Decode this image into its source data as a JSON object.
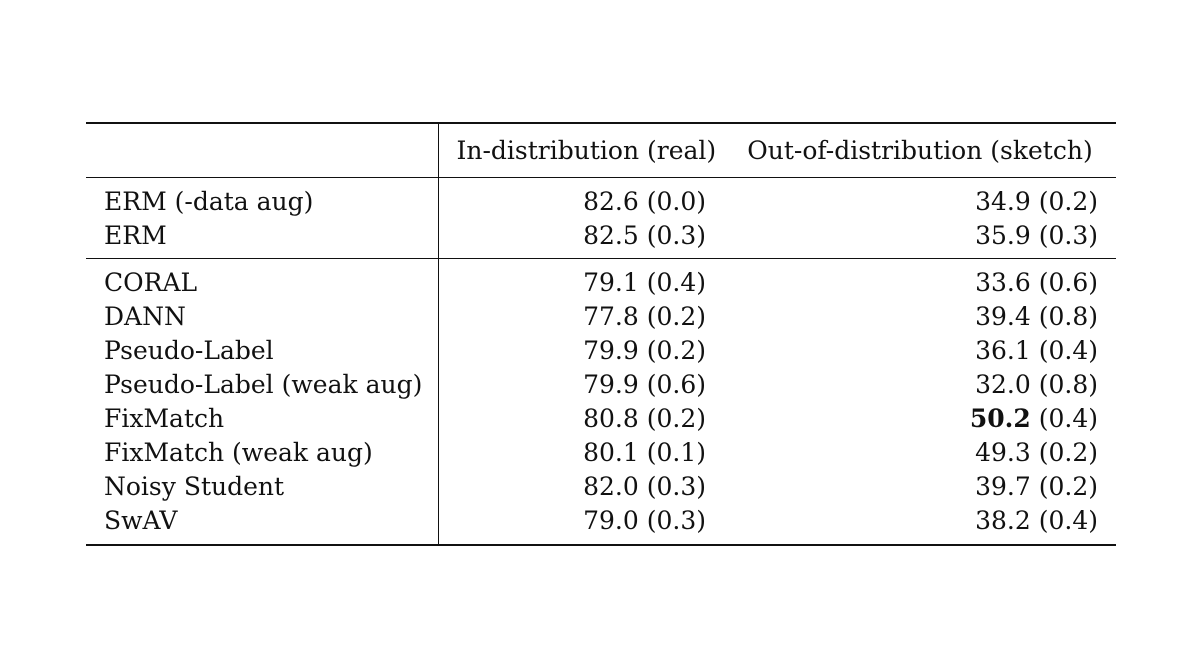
{
  "table": {
    "headers": {
      "method": "",
      "in_distribution": "In-distribution (real)",
      "out_of_distribution": "Out-of-distribution (sketch)"
    },
    "groups": [
      {
        "rows": [
          {
            "method": "ERM (-data aug)",
            "id_mean": "82.6",
            "id_std": "(0.0)",
            "ood_mean": "34.9",
            "ood_std": "(0.2)"
          },
          {
            "method": "ERM",
            "id_mean": "82.5",
            "id_std": "(0.3)",
            "ood_mean": "35.9",
            "ood_std": "(0.3)"
          }
        ]
      },
      {
        "rows": [
          {
            "method": "CORAL",
            "id_mean": "79.1",
            "id_std": "(0.4)",
            "ood_mean": "33.6",
            "ood_std": "(0.6)"
          },
          {
            "method": "DANN",
            "id_mean": "77.8",
            "id_std": "(0.2)",
            "ood_mean": "39.4",
            "ood_std": "(0.8)"
          },
          {
            "method": "Pseudo-Label",
            "id_mean": "79.9",
            "id_std": "(0.2)",
            "ood_mean": "36.1",
            "ood_std": "(0.4)"
          },
          {
            "method": "Pseudo-Label (weak aug)",
            "id_mean": "79.9",
            "id_std": "(0.6)",
            "ood_mean": "32.0",
            "ood_std": "(0.8)"
          },
          {
            "method": "FixMatch",
            "id_mean": "80.8",
            "id_std": "(0.2)",
            "ood_mean": "50.2",
            "ood_std": "(0.4)"
          },
          {
            "method": "FixMatch (weak aug)",
            "id_mean": "80.1",
            "id_std": "(0.1)",
            "ood_mean": "49.3",
            "ood_std": "(0.2)"
          },
          {
            "method": "Noisy Student",
            "id_mean": "82.0",
            "id_std": "(0.3)",
            "ood_mean": "39.7",
            "ood_std": "(0.2)"
          },
          {
            "method": "SwAV",
            "id_mean": "79.0",
            "id_std": "(0.3)",
            "ood_mean": "38.2",
            "ood_std": "(0.4)"
          }
        ]
      }
    ]
  }
}
